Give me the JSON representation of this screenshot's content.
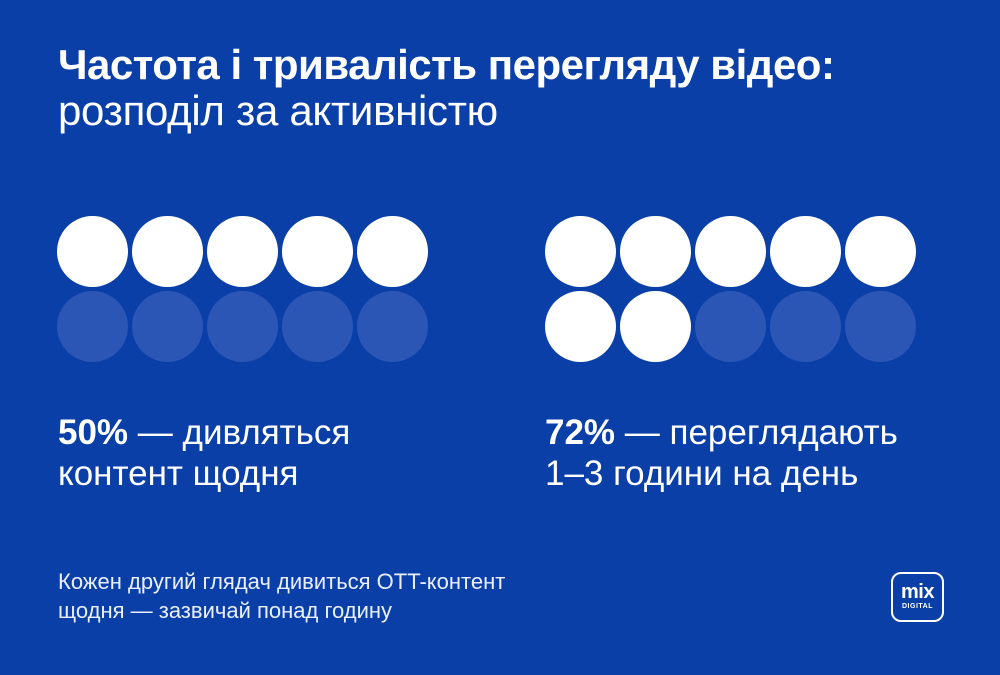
{
  "title": {
    "line1": "Частота і тривалість перегляду відео:",
    "line2": "розподіл за активністю"
  },
  "stats": [
    {
      "value": "50%",
      "dash": " — ",
      "text_line1": "дивляться",
      "text_line2": "контент щодня",
      "filled_dots": 5,
      "total_dots": 10
    },
    {
      "value": "72%",
      "dash": " — ",
      "text_line1": "переглядають",
      "text_line2": "1–3 години на день",
      "filled_dots": 7,
      "total_dots": 10
    }
  ],
  "footnote": {
    "line1": "Кожен другий глядач дивиться OTT-контент",
    "line2": "щодня — зазвичай понад годину"
  },
  "logo": {
    "main": "mix",
    "sub": "DIGITAL"
  },
  "colors": {
    "background": "#0a3fa8",
    "dot_filled": "#ffffff",
    "dot_empty": "#2b56b6"
  }
}
